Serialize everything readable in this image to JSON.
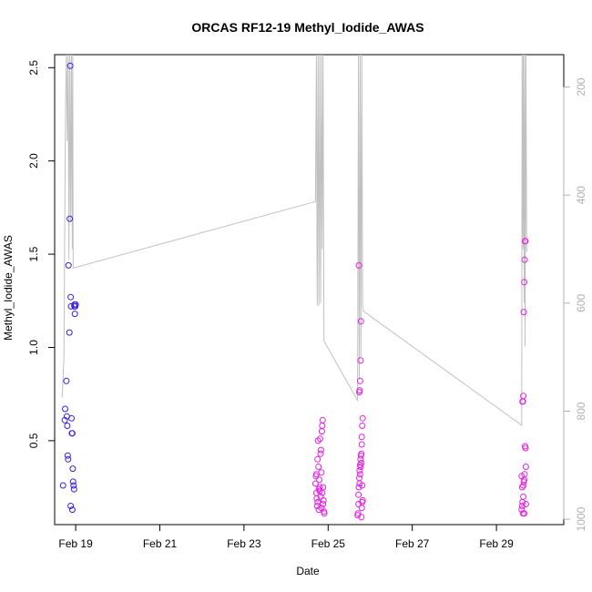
{
  "chart_data": {
    "type": "scatter",
    "title": "ORCAS RF12-19 Methyl_Iodide_AWAS",
    "xlabel": "Date",
    "ylabel": "Methyl_Iodide_AWAS",
    "xlim": [
      18.5,
      30.6
    ],
    "ylim": [
      0.05,
      2.57
    ],
    "x_ticks": [
      {
        "value": 19,
        "label": "Feb 19"
      },
      {
        "value": 21,
        "label": "Feb 21"
      },
      {
        "value": 23,
        "label": "Feb 23"
      },
      {
        "value": 25,
        "label": "Feb 25"
      },
      {
        "value": 27,
        "label": "Feb 27"
      },
      {
        "value": 29,
        "label": "Feb 29"
      }
    ],
    "y_ticks": [
      {
        "value": 0.5,
        "label": "0.5"
      },
      {
        "value": 1.0,
        "label": "1.0"
      },
      {
        "value": 1.5,
        "label": "1.5"
      },
      {
        "value": 2.0,
        "label": "2.0"
      },
      {
        "value": 2.5,
        "label": "2.5"
      }
    ],
    "right_axis": {
      "lim": [
        1010,
        140
      ],
      "ticks": [
        {
          "value": 200,
          "label": "200"
        },
        {
          "value": 400,
          "label": "400"
        },
        {
          "value": 600,
          "label": "600"
        },
        {
          "value": 800,
          "label": "800"
        },
        {
          "value": 1000,
          "label": "1000"
        }
      ],
      "color": "#b0b0b0"
    },
    "grid": false,
    "colors": {
      "early": "#3a1ee8",
      "late": "#e81ee6",
      "line": "#c0c0c0"
    },
    "series": [
      {
        "color": "#3a1ee8",
        "points": [
          [
            18.7,
            0.26
          ],
          [
            18.75,
            0.67
          ],
          [
            18.74,
            0.61
          ],
          [
            18.78,
            0.82
          ],
          [
            18.79,
            0.63
          ],
          [
            18.8,
            0.58
          ],
          [
            18.81,
            0.42
          ],
          [
            18.82,
            0.4
          ],
          [
            18.83,
            1.44
          ],
          [
            18.85,
            1.08
          ],
          [
            18.86,
            1.69
          ],
          [
            18.87,
            2.51
          ],
          [
            18.88,
            1.27
          ],
          [
            18.89,
            1.22
          ],
          [
            18.9,
            0.62
          ],
          [
            18.91,
            0.54
          ],
          [
            18.92,
            0.54
          ],
          [
            18.93,
            0.35
          ],
          [
            18.94,
            0.28
          ],
          [
            18.95,
            0.26
          ],
          [
            18.96,
            0.24
          ],
          [
            18.97,
            1.23
          ],
          [
            18.97,
            1.22
          ],
          [
            18.98,
            1.18
          ],
          [
            18.99,
            1.22
          ],
          [
            19.0,
            1.23
          ],
          [
            18.88,
            0.15
          ],
          [
            18.92,
            0.13
          ]
        ]
      },
      {
        "color": "#e81ee6",
        "points": [
          [
            24.7,
            0.27
          ],
          [
            24.71,
            0.31
          ],
          [
            24.72,
            0.22
          ],
          [
            24.73,
            0.19
          ],
          [
            24.74,
            0.15
          ],
          [
            24.75,
            0.4
          ],
          [
            24.76,
            0.5
          ],
          [
            24.77,
            0.36
          ],
          [
            24.78,
            0.13
          ],
          [
            24.79,
            0.29
          ],
          [
            24.8,
            0.25
          ],
          [
            24.81,
            0.51
          ],
          [
            24.82,
            0.43
          ],
          [
            24.83,
            0.45
          ],
          [
            24.84,
            0.33
          ],
          [
            24.85,
            0.55
          ],
          [
            24.86,
            0.58
          ],
          [
            24.87,
            0.61
          ],
          [
            24.88,
            0.25
          ],
          [
            24.89,
            0.18
          ],
          [
            24.9,
            0.12
          ],
          [
            24.91,
            0.11
          ],
          [
            24.86,
            0.22
          ],
          [
            24.78,
            0.24
          ],
          [
            24.82,
            0.2
          ],
          [
            24.75,
            0.17
          ],
          [
            24.84,
            0.14
          ],
          [
            24.72,
            0.32
          ],
          [
            24.88,
            0.16
          ],
          [
            24.8,
            0.23
          ],
          [
            25.7,
            0.1
          ],
          [
            25.71,
            0.11
          ],
          [
            25.72,
            0.16
          ],
          [
            25.73,
            0.25
          ],
          [
            25.74,
            0.3
          ],
          [
            25.75,
            0.34
          ],
          [
            25.76,
            0.37
          ],
          [
            25.77,
            0.4
          ],
          [
            25.78,
            0.42
          ],
          [
            25.79,
            0.43
          ],
          [
            25.8,
            0.48
          ],
          [
            25.8,
            0.52
          ],
          [
            25.81,
            0.58
          ],
          [
            25.82,
            0.62
          ],
          [
            25.74,
            0.76
          ],
          [
            25.75,
            0.77
          ],
          [
            25.76,
            0.82
          ],
          [
            25.77,
            0.93
          ],
          [
            25.78,
            1.14
          ],
          [
            25.73,
            1.44
          ],
          [
            25.79,
            0.09
          ],
          [
            25.8,
            0.14
          ],
          [
            25.81,
            0.17
          ],
          [
            25.82,
            0.18
          ],
          [
            25.75,
            0.27
          ],
          [
            25.77,
            0.36
          ],
          [
            25.79,
            0.38
          ],
          [
            25.72,
            0.21
          ],
          [
            25.81,
            0.26
          ],
          [
            25.76,
            0.32
          ],
          [
            29.6,
            0.13
          ],
          [
            29.61,
            0.15
          ],
          [
            29.62,
            0.17
          ],
          [
            29.63,
            0.11
          ],
          [
            29.64,
            0.26
          ],
          [
            29.65,
            0.28
          ],
          [
            29.66,
            0.29
          ],
          [
            29.67,
            0.32
          ],
          [
            29.68,
            0.47
          ],
          [
            29.69,
            0.46
          ],
          [
            29.7,
            0.36
          ],
          [
            29.62,
            0.71
          ],
          [
            29.63,
            0.71
          ],
          [
            29.64,
            0.74
          ],
          [
            29.65,
            1.19
          ],
          [
            29.66,
            1.35
          ],
          [
            29.67,
            1.47
          ],
          [
            29.68,
            1.57
          ],
          [
            29.69,
            1.57
          ],
          [
            29.61,
            0.25
          ],
          [
            29.7,
            0.16
          ],
          [
            29.66,
            0.11
          ],
          [
            29.64,
            0.2
          ],
          [
            29.6,
            0.31
          ]
        ]
      }
    ],
    "altitude_line": {
      "axis": "right",
      "color": "#c0c0c0",
      "points": [
        [
          18.68,
          775
        ],
        [
          18.72,
          700
        ],
        [
          18.74,
          450
        ],
        [
          18.76,
          230
        ],
        [
          18.78,
          140
        ],
        [
          18.8,
          300
        ],
        [
          18.82,
          140
        ],
        [
          18.84,
          520
        ],
        [
          18.86,
          140
        ],
        [
          18.88,
          450
        ],
        [
          18.9,
          140
        ],
        [
          18.92,
          500
        ],
        [
          18.93,
          140
        ],
        [
          18.94,
          535
        ],
        [
          24.7,
          412
        ],
        [
          24.72,
          140
        ],
        [
          24.74,
          605
        ],
        [
          24.76,
          140
        ],
        [
          24.78,
          605
        ],
        [
          24.8,
          140
        ],
        [
          24.82,
          600
        ],
        [
          24.84,
          140
        ],
        [
          24.86,
          500
        ],
        [
          24.88,
          140
        ],
        [
          24.9,
          670
        ],
        [
          25.7,
          780
        ],
        [
          25.72,
          140
        ],
        [
          25.74,
          740
        ],
        [
          25.76,
          140
        ],
        [
          25.78,
          700
        ],
        [
          25.8,
          140
        ],
        [
          25.82,
          605
        ],
        [
          25.84,
          615
        ],
        [
          29.6,
          826
        ],
        [
          29.61,
          140
        ],
        [
          29.63,
          500
        ],
        [
          29.64,
          140
        ],
        [
          29.66,
          600
        ],
        [
          29.67,
          140
        ],
        [
          29.68,
          680
        ],
        [
          29.7,
          140
        ],
        [
          29.72,
          505
        ]
      ]
    }
  }
}
